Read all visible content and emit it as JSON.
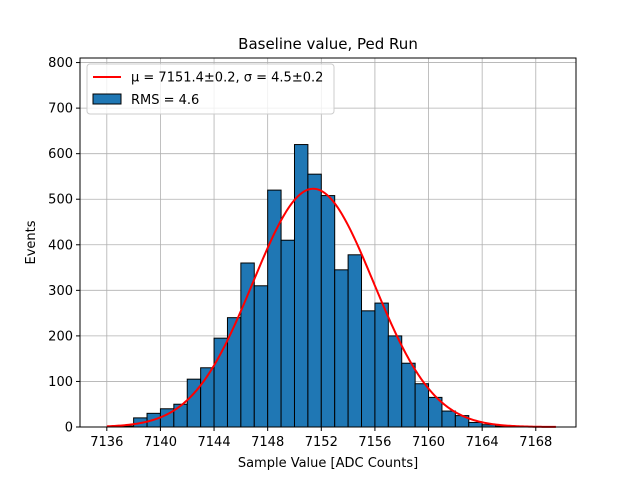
{
  "chart_data": {
    "type": "bar",
    "title": "Baseline value, Ped Run",
    "xlabel": "Sample Value [ADC Counts]",
    "ylabel": "Events",
    "xlim": [
      7134,
      7171
    ],
    "ylim": [
      0,
      810
    ],
    "xticks": [
      7136,
      7140,
      7144,
      7148,
      7152,
      7156,
      7160,
      7164,
      7168
    ],
    "yticks": [
      0,
      100,
      200,
      300,
      400,
      500,
      600,
      700,
      800
    ],
    "grid": true,
    "legend_position": "top-left",
    "bar_color": "#1f77b4",
    "fit_color": "#ff0000",
    "bin_width": 1,
    "bin_edges_start": 7136,
    "histogram": [
      0,
      2,
      20,
      30,
      40,
      50,
      105,
      130,
      195,
      240,
      360,
      310,
      520,
      410,
      620,
      555,
      508,
      345,
      378,
      255,
      272,
      200,
      140,
      95,
      65,
      35,
      25,
      10,
      5,
      2,
      0,
      0,
      0
    ],
    "fit": {
      "mu": 7151.4,
      "sigma": 4.5,
      "amplitude": 523,
      "x_range": [
        7136,
        7169.5
      ]
    },
    "legend": [
      {
        "label": "μ = 7151.4±0.2, σ = 4.5±0.2",
        "kind": "line"
      },
      {
        "label": "RMS = 4.6",
        "kind": "patch"
      }
    ]
  }
}
